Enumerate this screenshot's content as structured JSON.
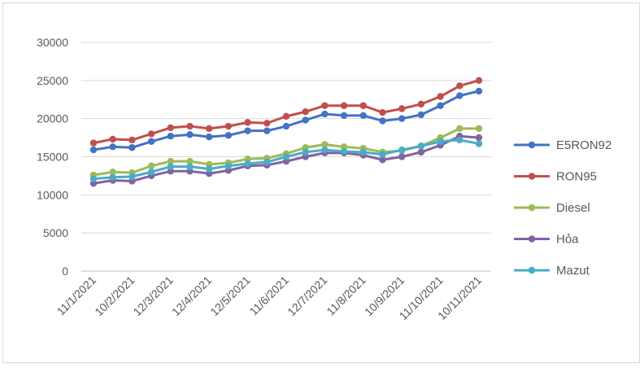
{
  "chart_data": {
    "type": "line",
    "title": "",
    "xlabel": "",
    "ylabel": "",
    "ylim": [
      0,
      30000
    ],
    "y_ticks": [
      0,
      5000,
      10000,
      15000,
      20000,
      25000,
      30000
    ],
    "grid": true,
    "legend_position": "right",
    "x_tick_labels": [
      "11/1/2021",
      "10/2/2021",
      "12/3/2021",
      "12/4/2021",
      "12/5/2021",
      "11/6/2021",
      "12/7/2021",
      "11/8/2021",
      "10/9/2021",
      "11/10/2021",
      "10/11/2021"
    ],
    "x": [
      "11/1/2021",
      "26/1/2021",
      "10/2/2021",
      "25/2/2021",
      "12/3/2021",
      "27/3/2021",
      "12/4/2021",
      "27/4/2021",
      "12/5/2021",
      "27/5/2021",
      "11/6/2021",
      "26/6/2021",
      "12/7/2021",
      "27/7/2021",
      "11/8/2021",
      "26/8/2021",
      "10/9/2021",
      "25/9/2021",
      "11/10/2021",
      "26/10/2021",
      "10/11/2021"
    ],
    "series": [
      {
        "name": "E5RON92",
        "color": "#4472c4",
        "values": [
          15900,
          16300,
          16200,
          17000,
          17700,
          17900,
          17600,
          17800,
          18400,
          18400,
          19000,
          19800,
          20600,
          20400,
          20400,
          19700,
          20000,
          20500,
          21700,
          23000,
          23600
        ]
      },
      {
        "name": "RON95",
        "color": "#c0504d",
        "values": [
          16800,
          17300,
          17200,
          18000,
          18800,
          19000,
          18700,
          19000,
          19500,
          19400,
          20300,
          20900,
          21700,
          21700,
          21700,
          20800,
          21300,
          21900,
          22900,
          24300,
          25000
        ]
      },
      {
        "name": "Diesel",
        "color": "#9bbb59",
        "values": [
          12600,
          13000,
          12900,
          13800,
          14400,
          14400,
          14000,
          14200,
          14700,
          14800,
          15400,
          16200,
          16600,
          16300,
          16100,
          15600,
          15800,
          16400,
          17500,
          18700,
          18700
        ]
      },
      {
        "name": "Hỏa",
        "color": "#8064a2",
        "values": [
          11500,
          11900,
          11800,
          12500,
          13100,
          13100,
          12800,
          13200,
          13800,
          13900,
          14400,
          15000,
          15500,
          15500,
          15200,
          14600,
          15000,
          15600,
          16500,
          17700,
          17500
        ]
      },
      {
        "name": "Mazut",
        "color": "#4bacc6",
        "values": [
          12100,
          12300,
          12400,
          13000,
          13700,
          13700,
          13400,
          13800,
          14100,
          14300,
          15000,
          15600,
          15900,
          15700,
          15600,
          15300,
          15900,
          16400,
          17000,
          17200,
          16700
        ]
      }
    ]
  }
}
